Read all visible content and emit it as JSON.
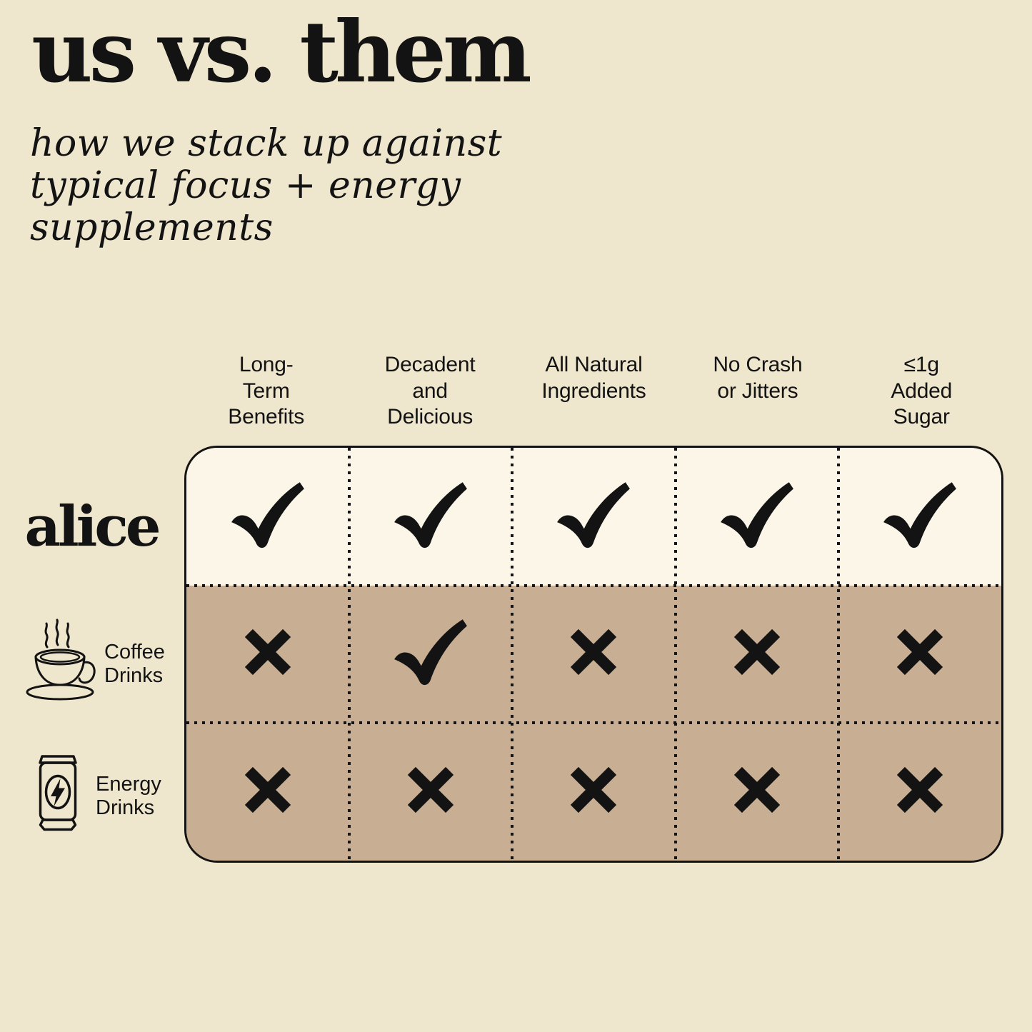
{
  "page": {
    "background_color": "#efe7cd",
    "ink_color": "#131313",
    "hero_row_color": "#fcf6e8",
    "competitor_row_color": "#c8ae92"
  },
  "header": {
    "title": "us vs. them",
    "subtitle": "how we stack up against\ntypical focus + energy\nsupplements"
  },
  "table": {
    "columns": [
      {
        "label": "Long-\nTerm\nBenefits"
      },
      {
        "label": "Decadent\nand\nDelicious"
      },
      {
        "label": "All Natural\nIngredients"
      },
      {
        "label": "No Crash\nor Jitters"
      },
      {
        "label": "≤1g\nAdded\nSugar"
      }
    ],
    "rows": [
      {
        "label": "alice",
        "icon": "alice-wordmark",
        "values": [
          true,
          true,
          true,
          true,
          true
        ]
      },
      {
        "label": "Coffee\nDrinks",
        "icon": "coffee-cup-icon",
        "values": [
          false,
          true,
          false,
          false,
          false
        ]
      },
      {
        "label": "Energy\nDrinks",
        "icon": "energy-can-icon",
        "values": [
          false,
          false,
          false,
          false,
          false
        ]
      }
    ],
    "marks": {
      "yes": "check",
      "no": "cross"
    }
  }
}
